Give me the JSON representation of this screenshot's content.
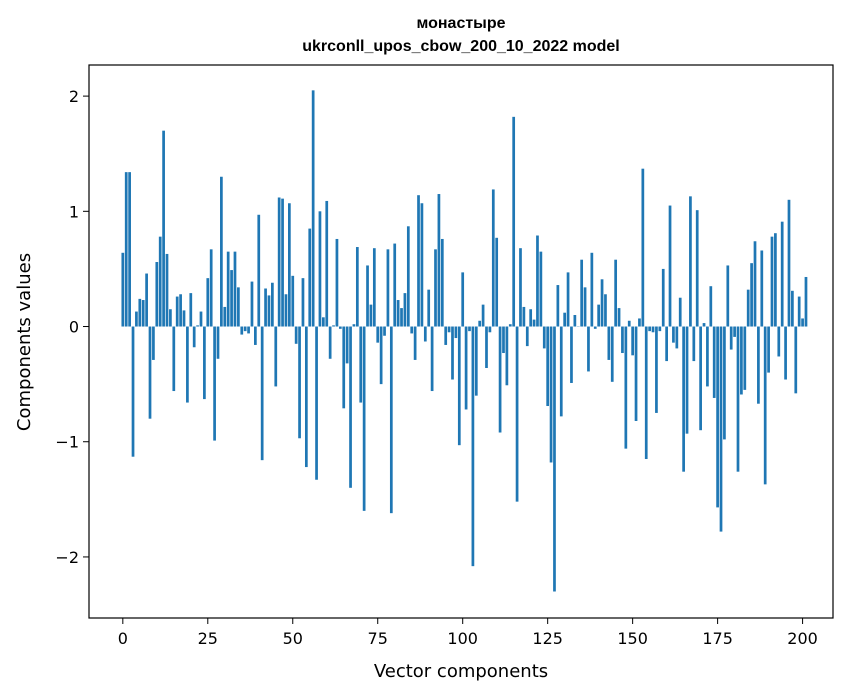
{
  "chart_data": {
    "type": "bar",
    "title": "монастыре",
    "subtitle": "ukrconll_upos_cbow_200_10_2022 model",
    "xlabel": "Vector components",
    "ylabel": "Components values",
    "xlim": [
      -9.95,
      208.95
    ],
    "ylim": [
      -2.53,
      2.27
    ],
    "xticks": [
      0,
      25,
      50,
      75,
      100,
      125,
      150,
      175,
      200
    ],
    "yticks": [
      -2,
      -1,
      0,
      1,
      2
    ],
    "xtick_labels": [
      "0",
      "25",
      "50",
      "75",
      "100",
      "125",
      "150",
      "175",
      "200"
    ],
    "ytick_labels": [
      "−2",
      "−1",
      "0",
      "1",
      "2"
    ],
    "grid": false,
    "bar_color": "#1f77b4",
    "values": [
      0.64,
      1.34,
      1.34,
      -1.13,
      0.13,
      0.24,
      0.23,
      0.46,
      -0.8,
      -0.29,
      0.56,
      0.78,
      1.7,
      0.63,
      0.15,
      -0.56,
      0.26,
      0.28,
      0.14,
      -0.66,
      0.29,
      -0.18,
      0.01,
      0.13,
      -0.63,
      0.42,
      0.67,
      -0.99,
      -0.28,
      1.3,
      0.17,
      0.65,
      0.49,
      0.65,
      0.34,
      -0.07,
      -0.04,
      -0.06,
      0.39,
      -0.16,
      0.97,
      -1.16,
      0.33,
      0.27,
      0.38,
      -0.52,
      1.12,
      1.11,
      0.28,
      1.07,
      0.44,
      -0.15,
      -0.97,
      0.42,
      -1.22,
      0.85,
      2.05,
      -1.33,
      1.0,
      0.08,
      1.09,
      -0.28,
      0.01,
      0.76,
      -0.02,
      -0.71,
      -0.32,
      -1.4,
      0.02,
      0.69,
      -0.66,
      -1.6,
      0.53,
      0.19,
      0.68,
      -0.14,
      -0.5,
      -0.08,
      0.67,
      -1.62,
      0.72,
      0.23,
      0.16,
      0.29,
      0.87,
      -0.06,
      -0.29,
      1.14,
      1.07,
      -0.13,
      0.32,
      -0.56,
      0.67,
      1.15,
      0.76,
      -0.16,
      -0.05,
      -0.46,
      -0.1,
      -1.03,
      0.47,
      -0.72,
      -0.04,
      -2.08,
      -0.6,
      0.05,
      0.19,
      -0.36,
      -0.05,
      1.19,
      0.77,
      -0.92,
      -0.23,
      -0.51,
      0.02,
      1.82,
      -1.52,
      0.68,
      0.17,
      -0.17,
      0.15,
      0.06,
      0.79,
      0.65,
      -0.19,
      -0.69,
      -1.18,
      -2.3,
      0.36,
      -0.78,
      0.12,
      0.47,
      -0.49,
      0.1,
      -0.0,
      0.58,
      0.34,
      -0.39,
      0.64,
      -0.02,
      0.19,
      0.41,
      0.28,
      -0.29,
      -0.48,
      0.58,
      0.16,
      -0.23,
      -1.06,
      0.05,
      -0.25,
      -0.82,
      0.07,
      1.37,
      -1.15,
      -0.04,
      -0.05,
      -0.75,
      -0.04,
      0.5,
      -0.3,
      1.05,
      -0.14,
      -0.19,
      0.25,
      -1.26,
      -0.93,
      1.13,
      -0.3,
      1.01,
      -0.9,
      0.03,
      -0.52,
      0.35,
      -0.62,
      -1.57,
      -1.78,
      -0.98,
      0.53,
      -0.2,
      -0.09,
      -1.26,
      -0.59,
      -0.55,
      0.32,
      0.55,
      0.74,
      -0.67,
      0.66,
      -1.37,
      -0.4,
      0.78,
      0.81,
      -0.26,
      0.91,
      -0.46,
      1.1,
      0.31,
      -0.58,
      0.26,
      0.07,
      0.43
    ]
  }
}
